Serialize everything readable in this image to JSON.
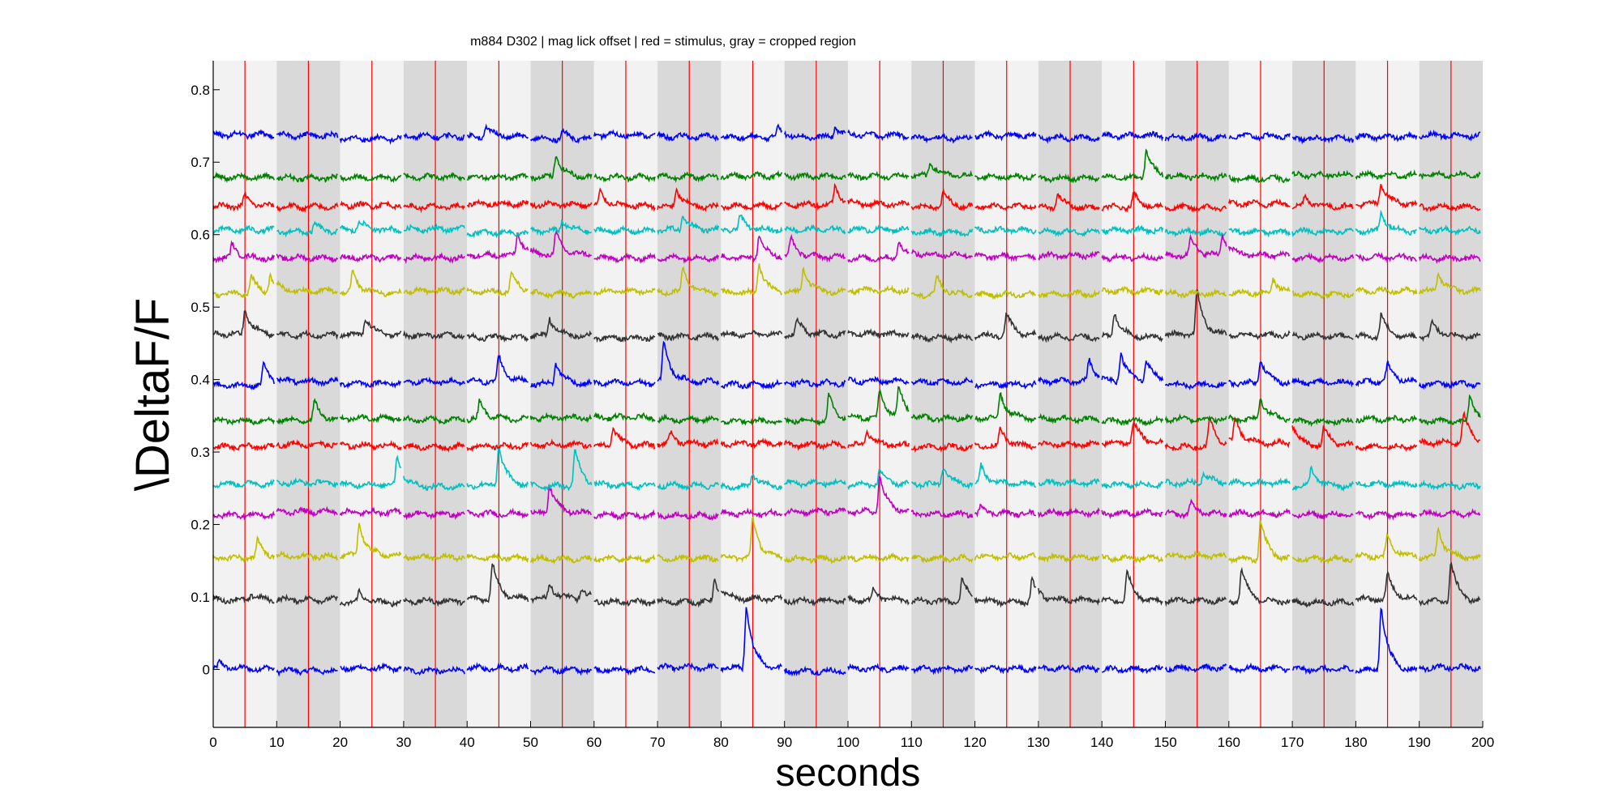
{
  "chart_data": {
    "type": "line",
    "title": "m884 D302 | mag lick  offset | red = stimulus, gray = cropped region",
    "xlabel": "seconds",
    "ylabel": "\\DeltaF/F",
    "xlim": [
      0,
      200
    ],
    "ylim": [
      -0.08,
      0.84
    ],
    "x_ticks": [
      0,
      10,
      20,
      30,
      40,
      50,
      60,
      70,
      80,
      90,
      100,
      110,
      120,
      130,
      140,
      150,
      160,
      170,
      180,
      190,
      200
    ],
    "y_ticks": [
      0,
      0.1,
      0.2,
      0.3,
      0.4,
      0.5,
      0.6,
      0.7,
      0.8
    ],
    "x_tick_labels": [
      "0",
      "10",
      "20",
      "30",
      "40",
      "50",
      "60",
      "70",
      "80",
      "90",
      "100",
      "110",
      "120",
      "130",
      "140",
      "150",
      "160",
      "170",
      "180",
      "190",
      "200"
    ],
    "y_tick_labels": [
      "0",
      "0.1",
      "0.2",
      "0.3",
      "0.4",
      "0.5",
      "0.6",
      "0.7",
      "0.8"
    ],
    "grid": false,
    "legend": "none",
    "stimulus_times": [
      5,
      15,
      25,
      35,
      45,
      55,
      65,
      75,
      85,
      95,
      105,
      115,
      125,
      135,
      145,
      155,
      165,
      175,
      185,
      195
    ],
    "stimulus_color": "#ff0000",
    "trial_length_s": 10,
    "trial_band_colors": [
      "#f2f2f2",
      "#d9d9d9"
    ],
    "series": [
      {
        "color": "#0000ff",
        "baseline": 0.0,
        "peaks": [
          [
            84,
            0.085
          ],
          [
            184,
            0.09
          ],
          [
            1,
            0.008
          ]
        ]
      },
      {
        "color": "#333333",
        "baseline": 0.095,
        "peaks": [
          [
            6,
            0.008
          ],
          [
            23,
            0.015
          ],
          [
            44,
            0.05
          ],
          [
            53,
            0.02
          ],
          [
            58,
            0.012
          ],
          [
            79,
            0.03
          ],
          [
            104,
            0.015
          ],
          [
            118,
            0.03
          ],
          [
            129,
            0.03
          ],
          [
            144,
            0.04
          ],
          [
            162,
            0.045
          ],
          [
            185,
            0.035
          ],
          [
            195,
            0.055
          ]
        ]
      },
      {
        "color": "#bfbf00",
        "baseline": 0.155,
        "peaks": [
          [
            7,
            0.025
          ],
          [
            23,
            0.045
          ],
          [
            85,
            0.055
          ],
          [
            165,
            0.055
          ],
          [
            185,
            0.03
          ],
          [
            193,
            0.04
          ]
        ]
      },
      {
        "color": "#bf00bf",
        "baseline": 0.215,
        "peaks": [
          [
            53,
            0.04
          ],
          [
            105,
            0.05
          ],
          [
            121,
            0.01
          ],
          [
            154,
            0.015
          ]
        ]
      },
      {
        "color": "#00bfbf",
        "baseline": 0.255,
        "peaks": [
          [
            29,
            0.04
          ],
          [
            45,
            0.055
          ],
          [
            57,
            0.05
          ],
          [
            85,
            0.02
          ],
          [
            105,
            0.02
          ],
          [
            115,
            0.025
          ],
          [
            121,
            0.025
          ],
          [
            156,
            0.015
          ],
          [
            173,
            0.025
          ]
        ]
      },
      {
        "color": "#ff0000",
        "baseline": 0.31,
        "peaks": [
          [
            63,
            0.025
          ],
          [
            72,
            0.015
          ],
          [
            103,
            0.02
          ],
          [
            124,
            0.025
          ],
          [
            145,
            0.03
          ],
          [
            157,
            0.04
          ],
          [
            161,
            0.035
          ],
          [
            170,
            0.03
          ],
          [
            175,
            0.025
          ],
          [
            197,
            0.04
          ]
        ]
      },
      {
        "color": "#008000",
        "baseline": 0.345,
        "peaks": [
          [
            16,
            0.025
          ],
          [
            42,
            0.025
          ],
          [
            97,
            0.035
          ],
          [
            105,
            0.035
          ],
          [
            108,
            0.04
          ],
          [
            124,
            0.035
          ],
          [
            165,
            0.03
          ],
          [
            198,
            0.035
          ]
        ]
      },
      {
        "color": "#0000ff",
        "baseline": 0.395,
        "peaks": [
          [
            8,
            0.03
          ],
          [
            45,
            0.035
          ],
          [
            54,
            0.03
          ],
          [
            71,
            0.055
          ],
          [
            138,
            0.03
          ],
          [
            143,
            0.04
          ],
          [
            147,
            0.03
          ],
          [
            165,
            0.035
          ],
          [
            185,
            0.025
          ]
        ]
      },
      {
        "color": "#333333",
        "baseline": 0.46,
        "peaks": [
          [
            5,
            0.035
          ],
          [
            24,
            0.025
          ],
          [
            53,
            0.025
          ],
          [
            92,
            0.02
          ],
          [
            125,
            0.03
          ],
          [
            142,
            0.035
          ],
          [
            155,
            0.06
          ],
          [
            184,
            0.03
          ],
          [
            192,
            0.02
          ]
        ]
      },
      {
        "color": "#bfbf00",
        "baseline": 0.52,
        "peaks": [
          [
            6,
            0.025
          ],
          [
            9,
            0.025
          ],
          [
            22,
            0.03
          ],
          [
            47,
            0.025
          ],
          [
            74,
            0.035
          ],
          [
            86,
            0.04
          ],
          [
            93,
            0.035
          ],
          [
            114,
            0.025
          ],
          [
            167,
            0.02
          ],
          [
            193,
            0.025
          ]
        ]
      },
      {
        "color": "#bf00bf",
        "baseline": 0.57,
        "peaks": [
          [
            3,
            0.02
          ],
          [
            48,
            0.03
          ],
          [
            54,
            0.03
          ],
          [
            86,
            0.03
          ],
          [
            91,
            0.025
          ],
          [
            108,
            0.025
          ],
          [
            154,
            0.025
          ],
          [
            159,
            0.03
          ]
        ]
      },
      {
        "color": "#00bfbf",
        "baseline": 0.605,
        "peaks": [
          [
            16,
            0.01
          ],
          [
            23,
            0.012
          ],
          [
            55,
            0.015
          ],
          [
            74,
            0.02
          ],
          [
            83,
            0.018
          ],
          [
            184,
            0.025
          ]
        ]
      },
      {
        "color": "#ff0000",
        "baseline": 0.64,
        "peaks": [
          [
            5,
            0.015
          ],
          [
            61,
            0.02
          ],
          [
            73,
            0.025
          ],
          [
            98,
            0.025
          ],
          [
            115,
            0.02
          ],
          [
            133,
            0.02
          ],
          [
            145,
            0.02
          ],
          [
            172,
            0.015
          ],
          [
            184,
            0.03
          ]
        ]
      },
      {
        "color": "#008000",
        "baseline": 0.68,
        "peaks": [
          [
            54,
            0.03
          ],
          [
            113,
            0.02
          ],
          [
            147,
            0.04
          ]
        ]
      },
      {
        "color": "#0000ff",
        "baseline": 0.735,
        "peaks": [
          [
            43,
            0.015
          ],
          [
            55,
            0.01
          ],
          [
            89,
            0.015
          ],
          [
            98,
            0.015
          ]
        ]
      }
    ]
  }
}
